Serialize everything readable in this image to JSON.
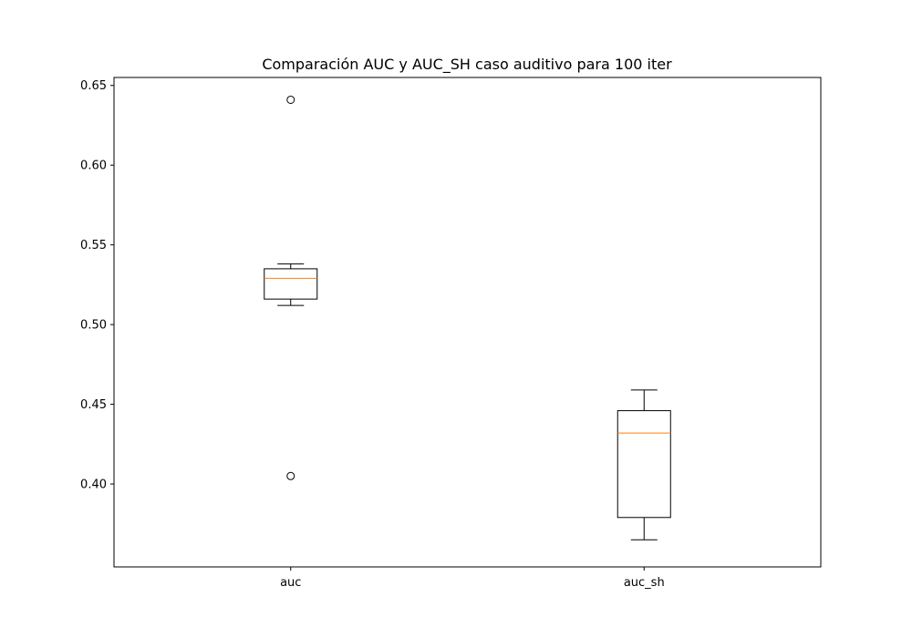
{
  "chart_data": {
    "type": "box",
    "title": "Comparación AUC y AUC_SH caso auditivo para 100 iter",
    "xlabel": "",
    "ylabel": "",
    "ylim": [
      0.348,
      0.655
    ],
    "yticks": [
      0.4,
      0.45,
      0.5,
      0.55,
      0.6,
      0.65
    ],
    "ytick_labels": [
      "0.40",
      "0.45",
      "0.50",
      "0.55",
      "0.60",
      "0.65"
    ],
    "categories": [
      "auc",
      "auc_sh"
    ],
    "boxes": [
      {
        "name": "auc",
        "whisker_low": 0.512,
        "q1": 0.516,
        "median": 0.529,
        "q3": 0.535,
        "whisker_high": 0.538,
        "outliers": [
          0.641,
          0.405
        ]
      },
      {
        "name": "auc_sh",
        "whisker_low": 0.365,
        "q1": 0.379,
        "median": 0.432,
        "q3": 0.446,
        "whisker_high": 0.459,
        "outliers": []
      }
    ],
    "colors": {
      "box": "#000000",
      "median": "#ff7f0e",
      "outlier_edge": "#000000"
    },
    "grid": false,
    "legend": "none"
  }
}
